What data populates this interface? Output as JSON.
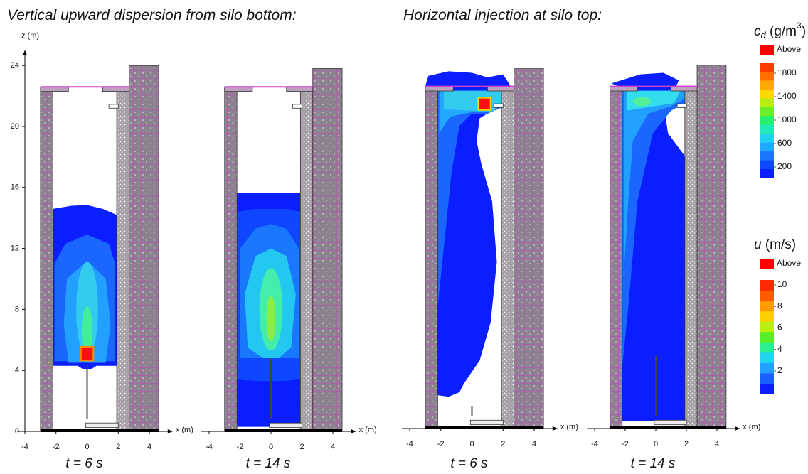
{
  "titles": [
    "Vertical upward dispersion from silo bottom:",
    "Horizontal injection at silo top:"
  ],
  "chart_data": [
    {
      "type": "contour",
      "y_label": "z (m)",
      "x_label": "x (m)",
      "time_label": "t = 6 s",
      "xlim": [
        -4.5,
        5.5
      ],
      "ylim": [
        0,
        25
      ],
      "xticks": [
        -4,
        -2,
        0,
        2,
        4
      ],
      "yticks": [
        0,
        4,
        8,
        12,
        16,
        20,
        24
      ]
    },
    {
      "type": "contour",
      "x_label": "x (m)",
      "time_label": "t = 14 s",
      "xlim": [
        -4.5,
        5.5
      ],
      "ylim": [
        0,
        25
      ],
      "xticks": [
        -4,
        -2,
        0,
        2,
        4
      ]
    },
    {
      "type": "contour",
      "x_label": "x (m)",
      "time_label": "t = 6 s",
      "xlim": [
        -4.5,
        5.5
      ],
      "ylim": [
        0,
        25
      ],
      "xticks": [
        -4,
        -2,
        0,
        2,
        4
      ]
    },
    {
      "type": "contour",
      "x_label": "x (m)",
      "time_label": "t = 14 s",
      "xlim": [
        -4.5,
        5.5
      ],
      "ylim": [
        0,
        25
      ],
      "xticks": [
        -4,
        -2,
        0,
        2,
        4
      ]
    }
  ],
  "legends": [
    {
      "symbol": "c",
      "subscript": "d",
      "unit": " (g/m",
      "power": "3",
      "unit_end": ")",
      "above": "Above",
      "ticks": [
        200,
        600,
        1000,
        1400,
        1800
      ],
      "colors": [
        "#0a1eff",
        "#0f46ff",
        "#1a78ff",
        "#22a8ff",
        "#22d0f0",
        "#22e8b8",
        "#2aee70",
        "#6cee2a",
        "#b8ee10",
        "#ffd800",
        "#ffa800",
        "#ff7000",
        "#ff3a00"
      ]
    },
    {
      "symbol": "u",
      "unit": " (m/s)",
      "above": "Above",
      "ticks": [
        2,
        4,
        6,
        8,
        10
      ],
      "colors": [
        "#0a1eff",
        "#1a60ff",
        "#22a0ff",
        "#22d4ee",
        "#2aee90",
        "#5aee2a",
        "#b8ee10",
        "#ffd000",
        "#ff9a00",
        "#ff5a00",
        "#ff2a00"
      ]
    }
  ]
}
